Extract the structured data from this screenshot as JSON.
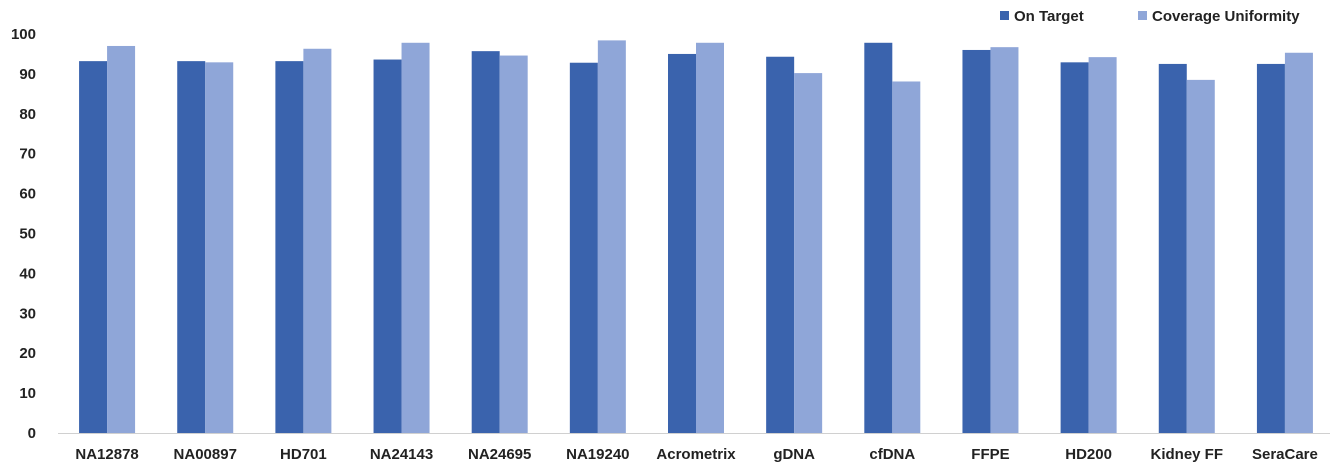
{
  "chart_data": {
    "type": "bar",
    "title": "",
    "xlabel": "",
    "ylabel": "",
    "ylim": [
      0,
      100
    ],
    "yticks": [
      0,
      10,
      20,
      30,
      40,
      50,
      60,
      70,
      80,
      90,
      100
    ],
    "grid": false,
    "legend_position": "top-right",
    "categories": [
      "NA12878",
      "NA00897",
      "HD701",
      "NA24143",
      "NA24695",
      "NA19240",
      "Acrometrix",
      "gDNA",
      "cfDNA",
      "FFPE",
      "HD200",
      "Kidney FF",
      "SeraCare"
    ],
    "series": [
      {
        "name": "On Target",
        "color": "#3a63ad",
        "values": [
          93.2,
          93.2,
          93.2,
          93.6,
          95.7,
          92.8,
          95.0,
          94.3,
          97.8,
          96.0,
          92.9,
          92.5,
          92.5
        ]
      },
      {
        "name": "Coverage Uniformity",
        "color": "#8fa6d8",
        "values": [
          97.0,
          92.9,
          96.3,
          97.8,
          94.6,
          98.4,
          97.8,
          90.2,
          88.1,
          96.7,
          94.2,
          88.5,
          95.3
        ]
      }
    ]
  }
}
